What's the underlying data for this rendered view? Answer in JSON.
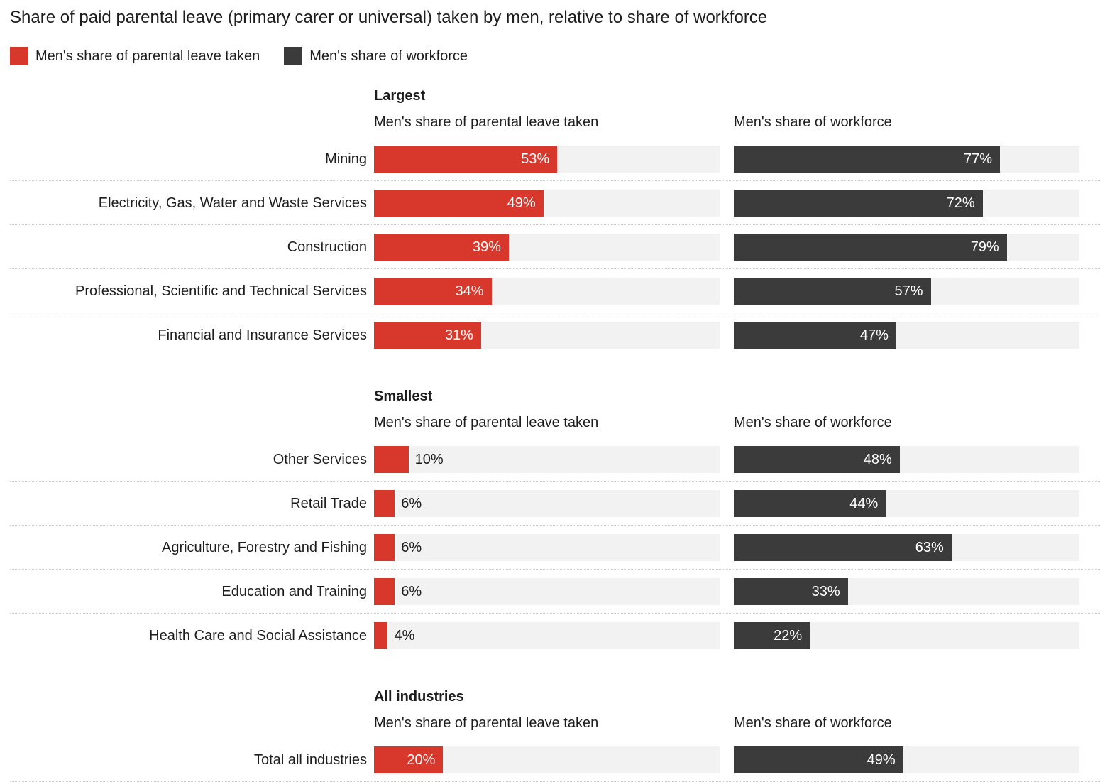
{
  "title": "Share of paid parental leave (primary carer or universal) taken by men, relative to share of workforce",
  "legend": [
    {
      "label": "Men's share of parental leave taken",
      "color": "#d8382c"
    },
    {
      "label": "Men's share of workforce",
      "color": "#3b3b3b"
    }
  ],
  "colors": {
    "leave_bar": "#d8382c",
    "workforce_bar": "#3b3b3b",
    "track": "#f2f2f2",
    "separator": "#c9c9c9",
    "value_inside": "#ffffff",
    "value_outside": "#1d1d1d"
  },
  "chart_data": {
    "type": "bar",
    "unit": "%",
    "value_range": [
      0,
      100
    ],
    "orientation": "horizontal",
    "grid": false,
    "legend_position": "top",
    "column_headers": [
      "Men's share of parental leave taken",
      "Men's share of workforce"
    ],
    "inside_label_threshold": 15,
    "series_names": [
      "Men's share of parental leave taken",
      "Men's share of workforce"
    ],
    "sections": [
      {
        "header": "Largest",
        "rows": [
          {
            "label": "Mining",
            "leave": 53,
            "workforce": 77
          },
          {
            "label": "Electricity, Gas, Water and Waste Services",
            "leave": 49,
            "workforce": 72
          },
          {
            "label": "Construction",
            "leave": 39,
            "workforce": 79
          },
          {
            "label": "Professional, Scientific and Technical Services",
            "leave": 34,
            "workforce": 57
          },
          {
            "label": "Financial and Insurance Services",
            "leave": 31,
            "workforce": 47
          }
        ]
      },
      {
        "header": "Smallest",
        "rows": [
          {
            "label": "Other Services",
            "leave": 10,
            "workforce": 48
          },
          {
            "label": "Retail Trade",
            "leave": 6,
            "workforce": 44
          },
          {
            "label": "Agriculture, Forestry and Fishing",
            "leave": 6,
            "workforce": 63
          },
          {
            "label": "Education and Training",
            "leave": 6,
            "workforce": 33
          },
          {
            "label": "Health Care and Social Assistance",
            "leave": 4,
            "workforce": 22
          }
        ]
      },
      {
        "header": "All industries",
        "rows": [
          {
            "label": "Total all industries",
            "leave": 20,
            "workforce": 49
          }
        ]
      }
    ]
  }
}
